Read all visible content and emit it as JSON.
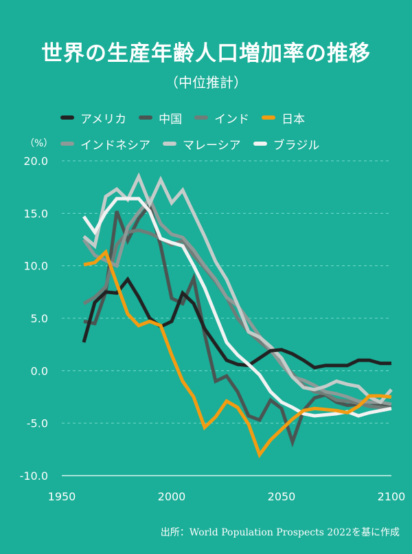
{
  "chart_data": {
    "type": "line",
    "title": "世界の生産年齢人口増加率の推移",
    "subtitle": "（中位推計）",
    "unit": "（%）",
    "xticks": [
      "1950",
      "2000",
      "2050",
      "2100"
    ],
    "yticks": [
      "20.0",
      "15.0",
      "10.0",
      "5.0",
      "0.0",
      "-5.0",
      "-10.0"
    ],
    "xlim": [
      1950,
      2100
    ],
    "ylim": [
      -10,
      20
    ],
    "grid": "horizontal dashed",
    "x": [
      1960,
      1965,
      1970,
      1975,
      1980,
      1985,
      1990,
      1995,
      2000,
      2005,
      2010,
      2015,
      2020,
      2025,
      2030,
      2035,
      2040,
      2045,
      2050,
      2055,
      2060,
      2065,
      2070,
      2075,
      2080,
      2085,
      2090,
      2095,
      2100
    ],
    "series": [
      {
        "name": "アメリカ",
        "color": "#222222",
        "values": [
          2.7,
          6.5,
          7.5,
          7.4,
          8.7,
          7.0,
          5.0,
          4.2,
          4.7,
          7.4,
          6.4,
          4.0,
          2.5,
          1.0,
          0.6,
          0.5,
          1.2,
          1.9,
          2.0,
          1.6,
          1.0,
          0.3,
          0.5,
          0.5,
          0.5,
          1.0,
          1.0,
          0.7,
          0.7
        ]
      },
      {
        "name": "中国",
        "color": "#4A5552",
        "values": [
          4.7,
          4.5,
          7.5,
          15.2,
          12.4,
          14.5,
          15.8,
          11.9,
          6.9,
          6.4,
          8.8,
          3.5,
          -1.0,
          -0.5,
          -2.0,
          -4.3,
          -4.7,
          -2.8,
          -3.6,
          -6.8,
          -3.8,
          -2.6,
          -2.3,
          -3.0,
          -3.3,
          -3.2,
          -3.0,
          -3.3,
          -3.5
        ]
      },
      {
        "name": "インド",
        "color": "#6F7D79",
        "values": [
          6.4,
          7.0,
          8.0,
          12.0,
          13.2,
          13.4,
          13.1,
          12.6,
          12.0,
          12.4,
          11.0,
          9.8,
          8.5,
          7.0,
          5.0,
          3.7,
          2.8,
          1.9,
          0.8,
          -0.3,
          -1.4,
          -2.0,
          -2.2,
          -2.8,
          -2.9,
          -3.1,
          -3.4,
          -3.5,
          -3.6
        ]
      },
      {
        "name": "日本",
        "color": "#F39C12",
        "values": [
          10.1,
          10.3,
          11.3,
          8.3,
          5.4,
          4.3,
          4.7,
          4.3,
          1.5,
          -1.0,
          -2.5,
          -5.4,
          -4.4,
          -2.9,
          -3.5,
          -5.1,
          -8.0,
          -6.6,
          -5.6,
          -4.6,
          -3.8,
          -3.6,
          -3.7,
          -3.8,
          -4.0,
          -3.4,
          -2.4,
          -2.4,
          -2.5
        ]
      },
      {
        "name": "インドネシア",
        "color": "#8E9A97",
        "values": [
          12.5,
          11.0,
          10.5,
          10.0,
          13.7,
          15.1,
          16.4,
          14.0,
          13.0,
          12.7,
          11.5,
          10.0,
          8.7,
          7.0,
          6.2,
          4.8,
          3.3,
          2.0,
          0.6,
          -0.6,
          -0.9,
          -1.4,
          -2.0,
          -2.2,
          -2.5,
          -2.9,
          -3.0,
          -3.0,
          -3.2
        ]
      },
      {
        "name": "マレーシア",
        "color": "#C5CCCA",
        "values": [
          12.8,
          11.9,
          16.6,
          17.3,
          16.3,
          18.5,
          15.9,
          18.2,
          16.0,
          17.2,
          15.0,
          12.8,
          10.4,
          8.7,
          6.3,
          3.7,
          3.2,
          2.3,
          1.2,
          -0.6,
          -1.6,
          -1.8,
          -1.5,
          -1.0,
          -1.3,
          -1.5,
          -2.5,
          -3.0,
          -1.8
        ]
      },
      {
        "name": "ブラジル",
        "color": "#F2F2F2",
        "values": [
          14.7,
          13.2,
          15.1,
          16.4,
          16.4,
          16.4,
          15.2,
          12.6,
          12.2,
          11.9,
          10.0,
          7.9,
          5.3,
          2.7,
          1.5,
          0.6,
          -0.4,
          -2.0,
          -3.0,
          -3.5,
          -4.1,
          -4.3,
          -4.2,
          -4.1,
          -3.9,
          -4.3,
          -4.0,
          -3.8,
          -3.6
        ]
      }
    ]
  },
  "legend_rows": [
    [
      0,
      1,
      2,
      3
    ],
    [
      4,
      5,
      6
    ]
  ],
  "source": "出所：World Population Prospects 2022を基に作成"
}
